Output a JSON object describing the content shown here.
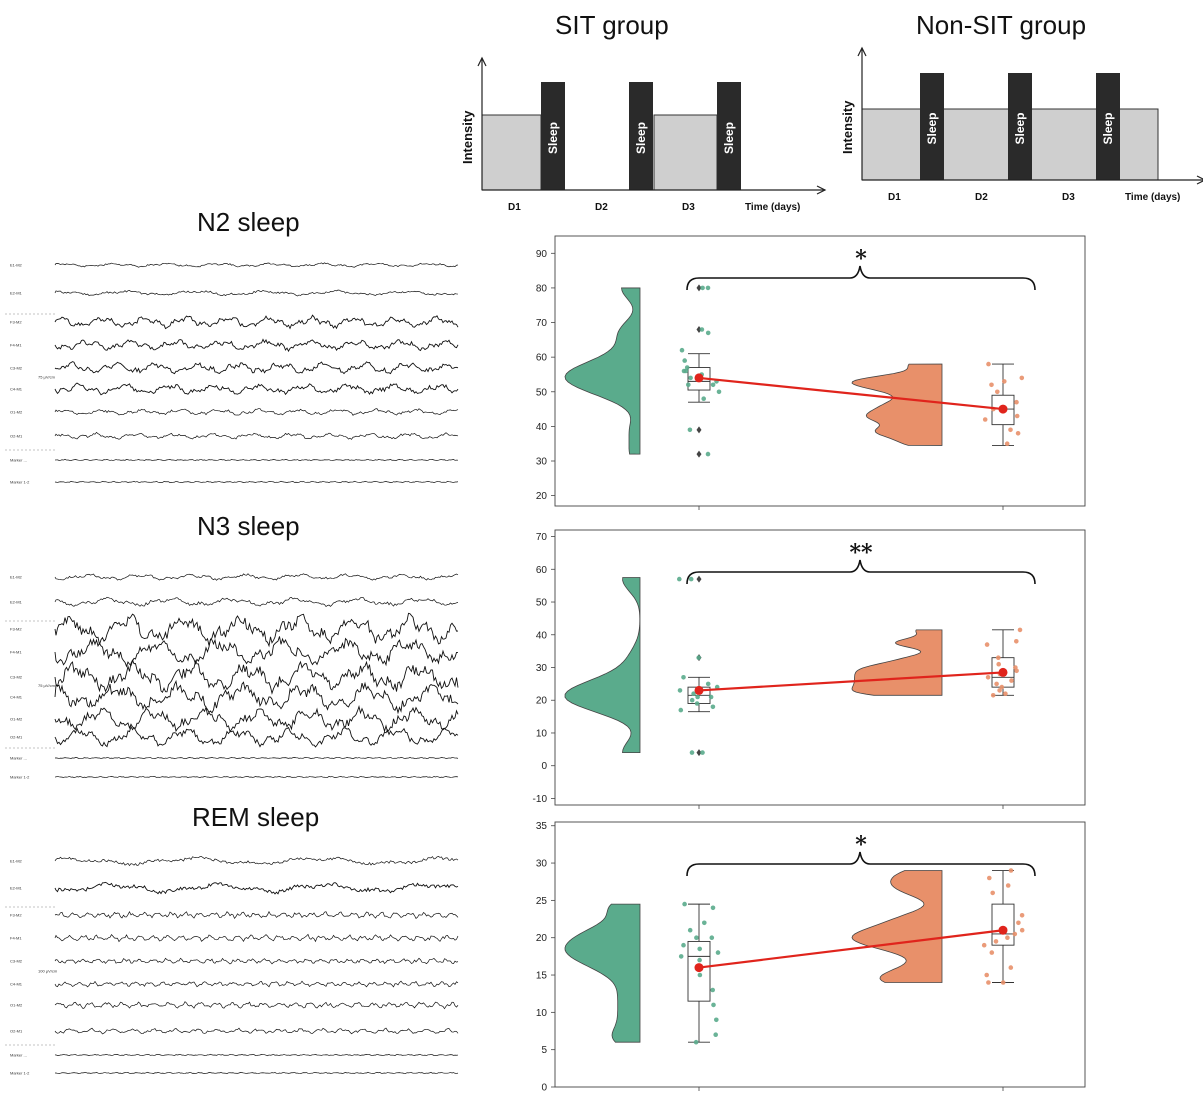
{
  "titles": {
    "sit": "SIT group",
    "nonsit": "Non-SIT group",
    "n2": "N2 sleep",
    "n3": "N3 sleep",
    "rem": "REM sleep"
  },
  "schedule": {
    "ylabel": "Intensity",
    "sleep_label": "Sleep",
    "day_labels": [
      "D1",
      "D2",
      "D3"
    ],
    "xlabel": "Time (days)"
  },
  "eeg_channel_labels": [
    "E1-M2",
    "E2-M1",
    "F3-M2",
    "F4-M1",
    "C3-M2",
    "C4-M1",
    "O1-M2",
    "O2-M1",
    "Marker ...",
    "Marker 1-2"
  ],
  "eeg_scale_labels": [
    "100 µV/cm",
    "75 µV/cm",
    "100 µV/cm"
  ],
  "colors": {
    "sit": "#5aab8c",
    "nonsit": "#e8906a",
    "mean_line": "#e0241c",
    "bar": "#2a2a2a",
    "fill": "#cfcfcf"
  },
  "chart_data": [
    {
      "type": "raincloud",
      "panel": "N2 sleep",
      "ylim": [
        17,
        95
      ],
      "yticks": [
        "20",
        "30",
        "40",
        "50",
        "60",
        "70",
        "80",
        "90"
      ],
      "significance": "*",
      "groups": [
        {
          "points": [
            80,
            80,
            68,
            67,
            62,
            59,
            57,
            56,
            56,
            55,
            54,
            53,
            52,
            52,
            50,
            48,
            39,
            32
          ],
          "box": {
            "q1": 50.5,
            "median": 53,
            "q3": 57,
            "whisker_low": 47,
            "whisker_high": 61
          },
          "outliers": [
            80,
            68,
            39,
            32
          ],
          "mean": 54,
          "range": [
            32,
            80
          ]
        },
        {
          "points": [
            58,
            54,
            53,
            52,
            50,
            47,
            45,
            43,
            42,
            39,
            38,
            35
          ],
          "box": {
            "q1": 40.5,
            "median": 45,
            "q3": 49,
            "whisker_low": 34.5,
            "whisker_high": 58
          },
          "outliers": [],
          "mean": 45,
          "range": [
            34.5,
            58
          ]
        }
      ]
    },
    {
      "type": "raincloud",
      "panel": "N3 sleep",
      "ylim": [
        -12,
        72
      ],
      "yticks": [
        "-10",
        "0",
        "10",
        "20",
        "30",
        "40",
        "50",
        "60",
        "70"
      ],
      "significance": "**",
      "groups": [
        {
          "points": [
            57,
            57,
            33,
            27,
            25,
            24,
            23,
            22,
            21,
            21,
            20,
            19,
            18,
            17,
            4,
            4
          ],
          "box": {
            "q1": 19,
            "median": 21.5,
            "q3": 24,
            "whisker_low": 16.5,
            "whisker_high": 27
          },
          "outliers": [
            57,
            33,
            4
          ],
          "mean": 23,
          "range": [
            4,
            57.5
          ]
        },
        {
          "points": [
            41.5,
            38,
            37,
            33,
            31,
            30,
            29,
            28,
            27,
            26,
            25,
            24,
            23,
            22,
            21.5
          ],
          "box": {
            "q1": 24,
            "median": 27,
            "q3": 33,
            "whisker_low": 21.5,
            "whisker_high": 41.5
          },
          "outliers": [],
          "mean": 28.5,
          "range": [
            21.5,
            41.5
          ]
        }
      ]
    },
    {
      "type": "raincloud",
      "panel": "REM sleep",
      "ylim": [
        0,
        35.5
      ],
      "yticks": [
        "0",
        "5",
        "10",
        "15",
        "20",
        "25",
        "30",
        "35"
      ],
      "significance": "*",
      "groups": [
        {
          "points": [
            24.5,
            24,
            22,
            21,
            20,
            20,
            19,
            18.5,
            18,
            17.5,
            17,
            16,
            15,
            13,
            11,
            9,
            7,
            6
          ],
          "box": {
            "q1": 11.5,
            "median": 17.5,
            "q3": 19.5,
            "whisker_low": 6,
            "whisker_high": 24.5
          },
          "outliers": [],
          "mean": 16,
          "range": [
            6,
            24.5
          ]
        },
        {
          "points": [
            29,
            28,
            27,
            26,
            23,
            22,
            21,
            20.5,
            20,
            19.5,
            19,
            18,
            16,
            15,
            14,
            14
          ],
          "box": {
            "q1": 19,
            "median": 20.5,
            "q3": 24.5,
            "whisker_low": 14,
            "whisker_high": 29
          },
          "outliers": [],
          "mean": 21,
          "range": [
            14,
            29
          ]
        }
      ]
    }
  ]
}
